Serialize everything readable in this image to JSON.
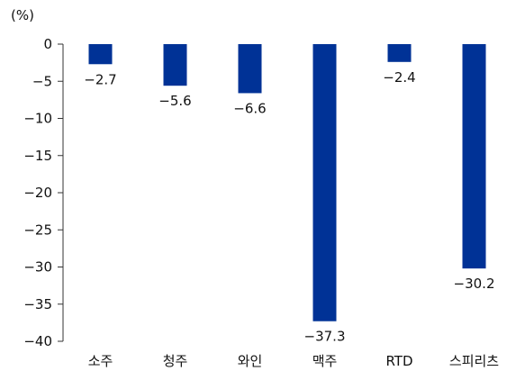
{
  "chart_data": {
    "type": "bar",
    "title": "",
    "xlabel": "",
    "ylabel": "",
    "unit_label": "(%)",
    "categories": [
      "소주",
      "청주",
      "와인",
      "맥주",
      "RTD",
      "스피리츠"
    ],
    "values": [
      -2.7,
      -5.6,
      -6.6,
      -37.3,
      -2.4,
      -30.2
    ],
    "data_labels": [
      "−2.7",
      "−5.6",
      "−6.6",
      "−37.3",
      "−2.4",
      "−30.2"
    ],
    "ylim": [
      -40,
      0
    ],
    "yticks": [
      0,
      -5,
      -10,
      -15,
      -20,
      -25,
      -30,
      -35,
      -40
    ],
    "ytick_labels": [
      "0",
      "−5",
      "−10",
      "−15",
      "−20",
      "−25",
      "−30",
      "−35",
      "−40"
    ],
    "grid": false,
    "legend": "none",
    "bar_color": "#003296"
  }
}
